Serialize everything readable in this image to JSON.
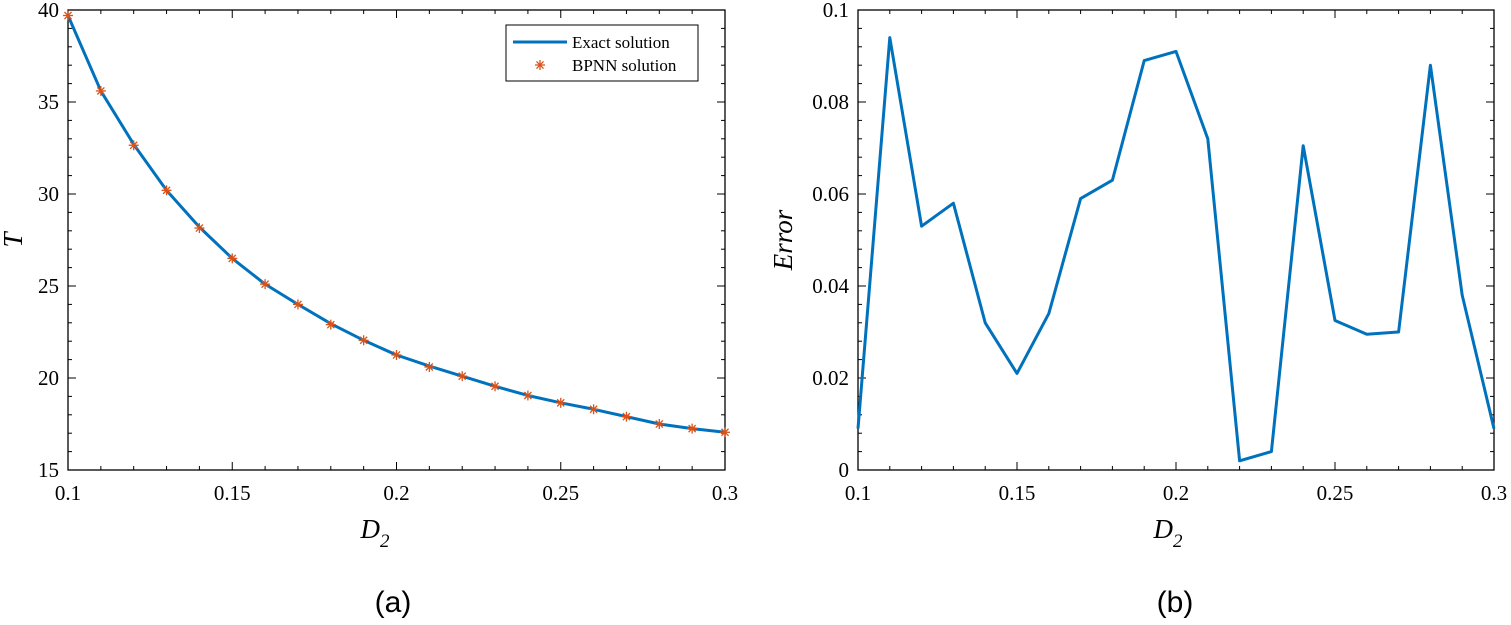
{
  "chart_data": [
    {
      "id": "a",
      "type": "line",
      "caption": "(a)",
      "xlabel_main": "D",
      "xlabel_sub": "2",
      "ylabel": "T",
      "xlim": [
        0.1,
        0.3
      ],
      "ylim": [
        15,
        40
      ],
      "xticks": [
        0.1,
        0.15,
        0.2,
        0.25,
        0.3
      ],
      "xtick_labels": [
        "0.1",
        "0.15",
        "0.2",
        "0.25",
        "0.3"
      ],
      "yticks": [
        15,
        20,
        25,
        30,
        35,
        40
      ],
      "ytick_labels": [
        "15",
        "20",
        "25",
        "30",
        "35",
        "40"
      ],
      "legend": {
        "position": "top-right",
        "entries": [
          "Exact solution",
          "BPNN solution"
        ]
      },
      "series": [
        {
          "name": "Exact solution",
          "style": "line",
          "color": "#0072BD",
          "x": [
            0.1,
            0.11,
            0.12,
            0.13,
            0.14,
            0.15,
            0.16,
            0.17,
            0.18,
            0.19,
            0.2,
            0.21,
            0.22,
            0.23,
            0.24,
            0.25,
            0.26,
            0.27,
            0.28,
            0.29,
            0.3
          ],
          "y": [
            39.7,
            35.6,
            32.7,
            30.2,
            28.2,
            26.5,
            25.1,
            24.0,
            22.95,
            22.05,
            21.25,
            20.65,
            20.1,
            19.55,
            19.05,
            18.65,
            18.3,
            17.9,
            17.5,
            17.25,
            17.05
          ]
        },
        {
          "name": "BPNN solution",
          "style": "asterisk",
          "color": "#D95319",
          "x": [
            0.1,
            0.11,
            0.12,
            0.13,
            0.14,
            0.15,
            0.16,
            0.17,
            0.18,
            0.19,
            0.2,
            0.21,
            0.22,
            0.23,
            0.24,
            0.25,
            0.26,
            0.27,
            0.28,
            0.29,
            0.3
          ],
          "y": [
            39.7,
            35.6,
            32.65,
            30.2,
            28.15,
            26.5,
            25.1,
            24.0,
            22.9,
            22.05,
            21.25,
            20.6,
            20.1,
            19.55,
            19.05,
            18.65,
            18.3,
            17.9,
            17.5,
            17.25,
            17.05
          ]
        }
      ]
    },
    {
      "id": "b",
      "type": "line",
      "caption": "(b)",
      "xlabel_main": "D",
      "xlabel_sub": "2",
      "ylabel": "Error",
      "xlim": [
        0.1,
        0.3
      ],
      "ylim": [
        0,
        0.1
      ],
      "xticks": [
        0.1,
        0.15,
        0.2,
        0.25,
        0.3
      ],
      "xtick_labels": [
        "0.1",
        "0.15",
        "0.2",
        "0.25",
        "0.3"
      ],
      "yticks": [
        0,
        0.02,
        0.04,
        0.06,
        0.08,
        0.1
      ],
      "ytick_labels": [
        "0",
        "0.02",
        "0.04",
        "0.06",
        "0.08",
        "0.1"
      ],
      "series": [
        {
          "name": "Error",
          "style": "line",
          "color": "#0072BD",
          "x": [
            0.1,
            0.11,
            0.12,
            0.13,
            0.14,
            0.15,
            0.16,
            0.17,
            0.18,
            0.19,
            0.2,
            0.21,
            0.22,
            0.23,
            0.24,
            0.25,
            0.26,
            0.27,
            0.28,
            0.29,
            0.3
          ],
          "y": [
            0.009,
            0.094,
            0.053,
            0.058,
            0.032,
            0.021,
            0.034,
            0.059,
            0.063,
            0.089,
            0.091,
            0.072,
            0.002,
            0.004,
            0.0705,
            0.0325,
            0.0295,
            0.03,
            0.088,
            0.038,
            0.009
          ]
        }
      ]
    }
  ]
}
